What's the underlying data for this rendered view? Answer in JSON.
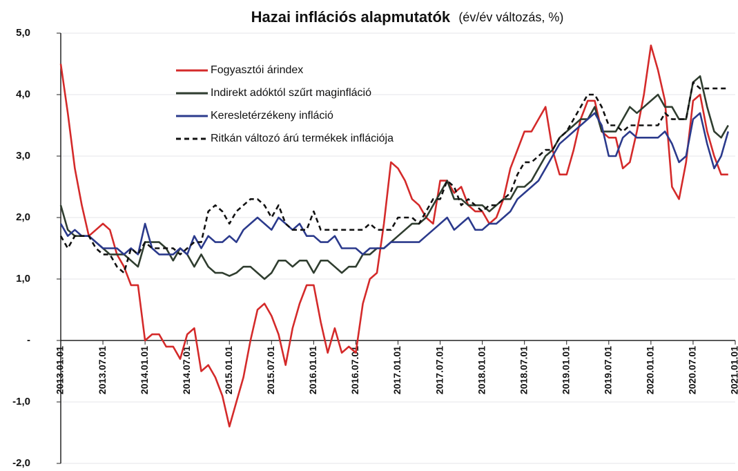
{
  "chart_data": {
    "type": "line",
    "title": "Hazai inflációs alapmutatók",
    "subtitle": "(év/év változás, %)",
    "categories": [
      "2013.01.01",
      null,
      null,
      null,
      null,
      null,
      "2013.07.01",
      null,
      null,
      null,
      null,
      null,
      "2014.01.01",
      null,
      null,
      null,
      null,
      null,
      "2014.07.01",
      null,
      null,
      null,
      null,
      null,
      "2015.01.01",
      null,
      null,
      null,
      null,
      null,
      "2015.07.01",
      null,
      null,
      null,
      null,
      null,
      "2016.01.01",
      null,
      null,
      null,
      null,
      null,
      "2016.07.01",
      null,
      null,
      null,
      null,
      null,
      "2017.01.01",
      null,
      null,
      null,
      null,
      null,
      "2017.07.01",
      null,
      null,
      null,
      null,
      null,
      "2018.01.01",
      null,
      null,
      null,
      null,
      null,
      "2018.07.01",
      null,
      null,
      null,
      null,
      null,
      "2019.01.01",
      null,
      null,
      null,
      null,
      null,
      "2019.07.01",
      null,
      null,
      null,
      null,
      null,
      "2020.01.01",
      null,
      null,
      null,
      null,
      null,
      "2020.07.01",
      null,
      null,
      null,
      null,
      null,
      "2021.01.01"
    ],
    "series": [
      {
        "name": "Fogyasztói árindex",
        "color": "#d42a2a",
        "dash": false,
        "values": [
          4.5,
          3.7,
          2.8,
          2.2,
          1.7,
          1.8,
          1.9,
          1.8,
          1.4,
          1.2,
          0.9,
          0.9,
          0.0,
          0.1,
          0.1,
          -0.1,
          -0.1,
          -0.3,
          0.1,
          0.2,
          -0.5,
          -0.4,
          -0.6,
          -0.9,
          -1.4,
          -1.0,
          -0.6,
          0.0,
          0.5,
          0.6,
          0.4,
          0.1,
          -0.4,
          0.2,
          0.6,
          0.9,
          0.9,
          0.3,
          -0.2,
          0.2,
          -0.2,
          -0.1,
          -0.2,
          0.6,
          1.0,
          1.1,
          1.9,
          2.9,
          2.8,
          2.6,
          2.3,
          2.2,
          2.0,
          1.9,
          2.6,
          2.6,
          2.4,
          2.5,
          2.2,
          2.1,
          2.1,
          1.9,
          2.0,
          2.3,
          2.8,
          3.1,
          3.4,
          3.4,
          3.6,
          3.8,
          3.1,
          2.7,
          2.7,
          3.1,
          3.6,
          3.9,
          3.9,
          3.4,
          3.3,
          3.3,
          2.8,
          2.9,
          3.4,
          4.0,
          4.8,
          4.4,
          3.9,
          2.5,
          2.3,
          2.9,
          3.9,
          4.0,
          3.4,
          3.0,
          2.7,
          2.7,
          null
        ]
      },
      {
        "name": "Indirekt adóktól szűrt maginfláció",
        "color": "#2f3d2f",
        "dash": false,
        "values": [
          2.2,
          1.8,
          1.7,
          1.7,
          1.7,
          1.6,
          1.5,
          1.4,
          1.4,
          1.4,
          1.3,
          1.2,
          1.6,
          1.6,
          1.6,
          1.5,
          1.3,
          1.5,
          1.4,
          1.2,
          1.4,
          1.2,
          1.1,
          1.1,
          1.05,
          1.1,
          1.2,
          1.2,
          1.1,
          1.0,
          1.1,
          1.3,
          1.3,
          1.2,
          1.3,
          1.3,
          1.1,
          1.3,
          1.3,
          1.2,
          1.1,
          1.2,
          1.2,
          1.4,
          1.4,
          1.5,
          1.5,
          1.6,
          1.7,
          1.8,
          1.9,
          1.9,
          2.0,
          2.2,
          2.4,
          2.6,
          2.3,
          2.3,
          2.2,
          2.2,
          2.2,
          2.1,
          2.2,
          2.3,
          2.3,
          2.5,
          2.5,
          2.6,
          2.8,
          3.0,
          3.1,
          3.3,
          3.4,
          3.5,
          3.6,
          3.6,
          3.8,
          3.4,
          3.4,
          3.4,
          3.6,
          3.8,
          3.7,
          3.8,
          3.9,
          4.0,
          3.8,
          3.8,
          3.6,
          3.6,
          4.2,
          4.3,
          3.8,
          3.4,
          3.3,
          3.5,
          null
        ]
      },
      {
        "name": "Keresletérzékeny infláció",
        "color": "#2b3a8c",
        "dash": false,
        "values": [
          1.9,
          1.7,
          1.8,
          1.7,
          1.7,
          1.6,
          1.5,
          1.5,
          1.5,
          1.4,
          1.5,
          1.4,
          1.9,
          1.5,
          1.4,
          1.4,
          1.4,
          1.5,
          1.4,
          1.7,
          1.5,
          1.7,
          1.6,
          1.6,
          1.7,
          1.6,
          1.8,
          1.9,
          2.0,
          1.9,
          1.8,
          2.0,
          1.9,
          1.8,
          1.9,
          1.7,
          1.7,
          1.6,
          1.6,
          1.7,
          1.5,
          1.5,
          1.5,
          1.4,
          1.5,
          1.5,
          1.5,
          1.6,
          1.6,
          1.6,
          1.6,
          1.6,
          1.7,
          1.8,
          1.9,
          2.0,
          1.8,
          1.9,
          2.0,
          1.8,
          1.8,
          1.9,
          1.9,
          2.0,
          2.1,
          2.3,
          2.4,
          2.5,
          2.6,
          2.8,
          3.0,
          3.2,
          3.3,
          3.4,
          3.5,
          3.6,
          3.7,
          3.5,
          3.0,
          3.0,
          3.3,
          3.4,
          3.3,
          3.3,
          3.3,
          3.3,
          3.4,
          3.2,
          2.9,
          3.0,
          3.6,
          3.7,
          3.2,
          2.8,
          3.0,
          3.4,
          null
        ]
      },
      {
        "name": "Ritkán változó árú termékek inflációja",
        "color": "#111111",
        "dash": true,
        "values": [
          1.7,
          1.5,
          1.7,
          1.7,
          1.7,
          1.5,
          1.4,
          1.4,
          1.2,
          1.1,
          1.5,
          1.4,
          1.6,
          1.5,
          1.5,
          1.5,
          1.5,
          1.4,
          1.5,
          1.6,
          1.6,
          2.1,
          2.2,
          2.1,
          1.9,
          2.1,
          2.2,
          2.3,
          2.3,
          2.2,
          2.0,
          2.2,
          1.9,
          1.8,
          1.8,
          1.8,
          2.1,
          1.8,
          1.8,
          1.8,
          1.8,
          1.8,
          1.8,
          1.8,
          1.9,
          1.8,
          1.8,
          1.8,
          2.0,
          2.0,
          2.0,
          1.9,
          2.1,
          2.3,
          2.3,
          2.6,
          2.5,
          2.2,
          2.3,
          2.2,
          2.1,
          2.2,
          2.2,
          2.3,
          2.4,
          2.7,
          2.9,
          2.9,
          3.0,
          3.1,
          3.1,
          3.3,
          3.4,
          3.6,
          3.8,
          4.0,
          4.0,
          3.8,
          3.5,
          3.5,
          3.4,
          3.5,
          3.5,
          3.5,
          3.5,
          3.5,
          3.7,
          3.6,
          3.6,
          3.6,
          4.2,
          4.1,
          4.1,
          4.1,
          4.1,
          4.1,
          null
        ]
      }
    ],
    "ylim": [
      -2,
      5
    ],
    "yticks": [
      {
        "value": -2,
        "label": "-2,0"
      },
      {
        "value": -1,
        "label": "-1,0"
      },
      {
        "value": 0,
        "label": "-"
      },
      {
        "value": 1,
        "label": "1,0"
      },
      {
        "value": 2,
        "label": "2,0"
      },
      {
        "value": 3,
        "label": "3,0"
      },
      {
        "value": 4,
        "label": "4,0"
      },
      {
        "value": 5,
        "label": "5,0"
      }
    ],
    "grid": true,
    "legend": "upper left"
  }
}
